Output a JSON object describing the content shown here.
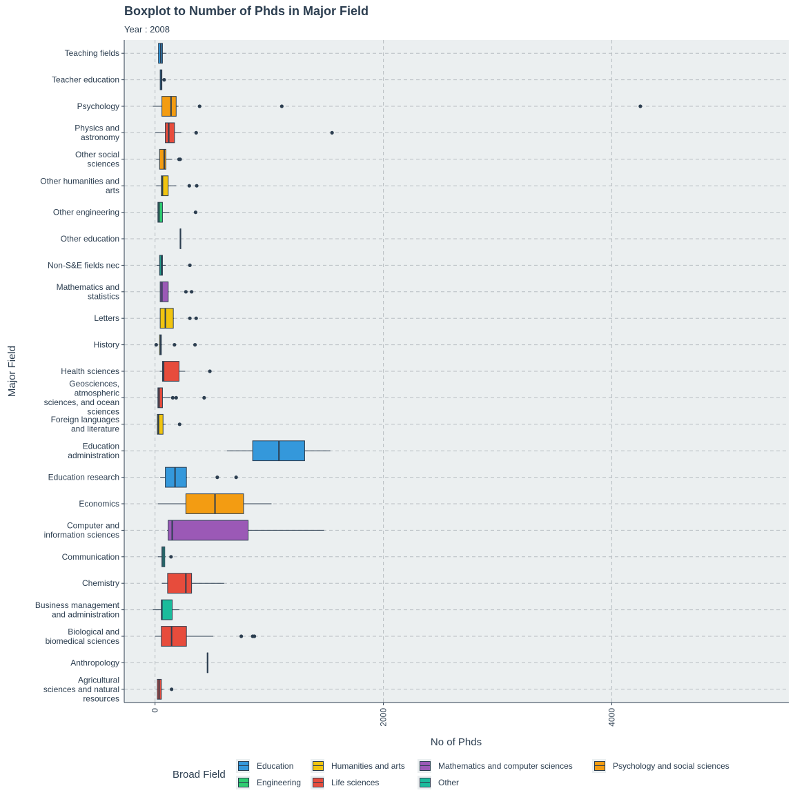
{
  "title": "Boxplot to Number of Phds in Major Field",
  "subtitle": "Year : 2008",
  "colors": {
    "Education": "#3498db",
    "Engineering": "#2ecc71",
    "Humanities and arts": "#f1c40f",
    "Life sciences": "#e74c3c",
    "Mathematics and computer sciences": "#9b59b6",
    "Other": "#1abc9c",
    "Psychology and social sciences": "#f39c12",
    "panel_background": "#ebeff0",
    "ink": "#2c3e50"
  },
  "chart_data": {
    "type": "boxplot",
    "orientation": "horizontal",
    "xlabel": "No of Phds",
    "ylabel": "Major Field",
    "xlim": [
      -270,
      5550
    ],
    "x_ticks": [
      "0",
      "2000",
      "4000"
    ],
    "x_tick_values": [
      0,
      2000,
      4000
    ],
    "grid": "dashed",
    "legend_title": "Broad Field",
    "legend_position": "bottom",
    "legend_entries": [
      "Education",
      "Engineering",
      "Humanities and arts",
      "Life sciences",
      "Mathematics and computer sciences",
      "Other",
      "Psychology and social sciences"
    ],
    "categories": [
      {
        "label": [
          "Teaching fields"
        ],
        "group": "Education",
        "whisker_low": 25,
        "q1": 30,
        "median": 50,
        "q3": 65,
        "whisker_high": 100,
        "outliers": []
      },
      {
        "label": [
          "Teacher education"
        ],
        "group": "Education",
        "whisker_low": 40,
        "q1": 45,
        "median": 55,
        "q3": 60,
        "whisker_high": 65,
        "outliers": [
          80
        ]
      },
      {
        "label": [
          "Psychology"
        ],
        "group": "Psychology and social sciences",
        "whisker_low": -20,
        "q1": 60,
        "median": 140,
        "q3": 185,
        "whisker_high": 205,
        "outliers": [
          390,
          1110,
          4250
        ]
      },
      {
        "label": [
          "Physics and",
          "astronomy"
        ],
        "group": "Life sciences",
        "whisker_low": 0,
        "q1": 90,
        "median": 120,
        "q3": 170,
        "whisker_high": 230,
        "outliers": [
          360,
          1550
        ]
      },
      {
        "label": [
          "Other social",
          "sciences"
        ],
        "group": "Psychology and social sciences",
        "whisker_low": 10,
        "q1": 40,
        "median": 80,
        "q3": 95,
        "whisker_high": 150,
        "outliers": [
          210,
          220
        ]
      },
      {
        "label": [
          "Other humanities and",
          "arts"
        ],
        "group": "Humanities and arts",
        "whisker_low": 10,
        "q1": 55,
        "median": 65,
        "q3": 115,
        "whisker_high": 185,
        "outliers": [
          300,
          365
        ]
      },
      {
        "label": [
          "Other engineering"
        ],
        "group": "Engineering",
        "whisker_low": 20,
        "q1": 25,
        "median": 35,
        "q3": 65,
        "whisker_high": 125,
        "outliers": [
          355
        ]
      },
      {
        "label": [
          "Other education"
        ],
        "group": "Education",
        "whisker_low": 218,
        "q1": 220,
        "median": 222,
        "q3": 224,
        "whisker_high": 226,
        "outliers": []
      },
      {
        "label": [
          "Non-S&E fields nec"
        ],
        "group": "Other",
        "whisker_low": 15,
        "q1": 40,
        "median": 55,
        "q3": 65,
        "whisker_high": 95,
        "outliers": [
          305
        ]
      },
      {
        "label": [
          "Mathematics and",
          "statistics"
        ],
        "group": "Mathematics and computer sciences",
        "whisker_low": 40,
        "q1": 45,
        "median": 60,
        "q3": 115,
        "whisker_high": 120,
        "outliers": [
          270,
          320
        ]
      },
      {
        "label": [
          "Letters"
        ],
        "group": "Humanities and arts",
        "whisker_low": 40,
        "q1": 45,
        "median": 90,
        "q3": 160,
        "whisker_high": 165,
        "outliers": [
          305,
          360
        ]
      },
      {
        "label": [
          "History"
        ],
        "group": "Humanities and arts",
        "whisker_low": 35,
        "q1": 40,
        "median": 50,
        "q3": 55,
        "whisker_high": 60,
        "outliers": [
          10,
          170,
          350
        ]
      },
      {
        "label": [
          "Health sciences"
        ],
        "group": "Life sciences",
        "whisker_low": 40,
        "q1": 65,
        "median": 75,
        "q3": 210,
        "whisker_high": 265,
        "outliers": [
          480
        ]
      },
      {
        "label": [
          "Geosciences,",
          "atmospheric",
          "sciences, and ocean",
          "sciences"
        ],
        "group": "Life sciences",
        "whisker_low": 20,
        "q1": 25,
        "median": 35,
        "q3": 65,
        "whisker_high": 135,
        "outliers": [
          155,
          185,
          430
        ]
      },
      {
        "label": [
          "Foreign languages",
          "and literature"
        ],
        "group": "Humanities and arts",
        "whisker_low": 15,
        "q1": 20,
        "median": 30,
        "q3": 70,
        "whisker_high": 95,
        "outliers": [
          215
        ]
      },
      {
        "label": [
          "Education",
          "administration"
        ],
        "group": "Education",
        "whisker_low": 630,
        "q1": 855,
        "median": 1085,
        "q3": 1310,
        "whisker_high": 1535,
        "outliers": []
      },
      {
        "label": [
          "Education research"
        ],
        "group": "Education",
        "whisker_low": 45,
        "q1": 90,
        "median": 175,
        "q3": 275,
        "whisker_high": 280,
        "outliers": [
          545,
          710
        ]
      },
      {
        "label": [
          "Economics"
        ],
        "group": "Psychology and social sciences",
        "whisker_low": 25,
        "q1": 270,
        "median": 525,
        "q3": 775,
        "whisker_high": 1020,
        "outliers": []
      },
      {
        "label": [
          "Computer and",
          "information sciences"
        ],
        "group": "Mathematics and computer sciences",
        "whisker_low": 105,
        "q1": 115,
        "median": 150,
        "q3": 815,
        "whisker_high": 1480,
        "outliers": []
      },
      {
        "label": [
          "Communication"
        ],
        "group": "Other",
        "whisker_low": 25,
        "q1": 60,
        "median": 70,
        "q3": 85,
        "whisker_high": 95,
        "outliers": [
          140
        ]
      },
      {
        "label": [
          "Chemistry"
        ],
        "group": "Life sciences",
        "whisker_low": 60,
        "q1": 110,
        "median": 270,
        "q3": 320,
        "whisker_high": 605,
        "outliers": []
      },
      {
        "label": [
          "Business management",
          "and administration"
        ],
        "group": "Other",
        "whisker_low": -20,
        "q1": 55,
        "median": 60,
        "q3": 150,
        "whisker_high": 215,
        "outliers": []
      },
      {
        "label": [
          "Biological and",
          "biomedical sciences"
        ],
        "group": "Life sciences",
        "whisker_low": 0,
        "q1": 55,
        "median": 145,
        "q3": 275,
        "whisker_high": 510,
        "outliers": [
          755,
          855,
          870
        ]
      },
      {
        "label": [
          "Anthropology"
        ],
        "group": "Other",
        "whisker_low": 455,
        "q1": 457,
        "median": 460,
        "q3": 463,
        "whisker_high": 465,
        "outliers": []
      },
      {
        "label": [
          "Agricultural",
          "sciences and natural",
          "resources"
        ],
        "group": "Life sciences",
        "whisker_low": 15,
        "q1": 20,
        "median": 35,
        "q3": 55,
        "whisker_high": 75,
        "outliers": [
          145
        ]
      }
    ]
  }
}
